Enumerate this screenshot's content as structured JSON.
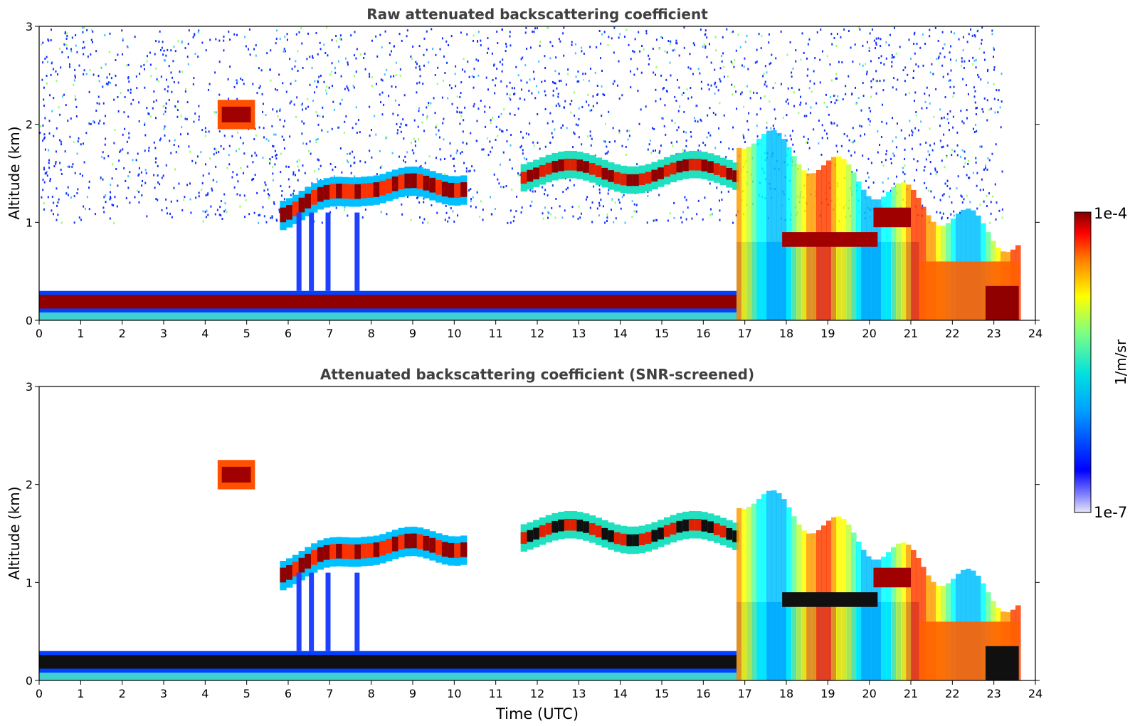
{
  "chart_data": [
    {
      "type": "heatmap",
      "title": "Raw attenuated backscattering coefficient",
      "xlabel": "",
      "ylabel": "Altitude (km)",
      "xlim": [
        0,
        24
      ],
      "ylim": [
        0,
        3
      ],
      "xticks": [
        "0",
        "1",
        "2",
        "3",
        "4",
        "5",
        "6",
        "7",
        "8",
        "9",
        "10",
        "11",
        "12",
        "13",
        "14",
        "15",
        "16",
        "17",
        "18",
        "19",
        "20",
        "21",
        "22",
        "23",
        "24"
      ],
      "yticks": [
        "0",
        "1",
        "2",
        "3"
      ],
      "grid": false,
      "features": [
        {
          "label": "boundary layer aerosol",
          "t": [
            0,
            16.8
          ],
          "z": [
            0.1,
            0.3
          ],
          "level": "high"
        },
        {
          "label": "elevated layer",
          "t": [
            4.3,
            5.2
          ],
          "z": [
            1.95,
            2.25
          ],
          "level": "high"
        },
        {
          "label": "cloud layer",
          "t": [
            5.8,
            10.3
          ],
          "z": [
            1.0,
            1.5
          ],
          "level": "high"
        },
        {
          "label": "cloud layer",
          "t": [
            11.6,
            16.8
          ],
          "z": [
            1.3,
            1.7
          ],
          "level": "high"
        },
        {
          "label": "precipitating cloud",
          "t": [
            16.8,
            23.6
          ],
          "z": [
            0,
            1.9
          ],
          "level": "high"
        },
        {
          "label": "noise",
          "t": [
            0,
            23.2
          ],
          "z": [
            1.0,
            3.0
          ],
          "level": "low"
        }
      ]
    },
    {
      "type": "heatmap",
      "title": "Attenuated backscattering coefficient (SNR-screened)",
      "xlabel": "Time (UTC)",
      "ylabel": "Altitude (km)",
      "xlim": [
        0,
        24
      ],
      "ylim": [
        0,
        3
      ],
      "xticks": [
        "0",
        "1",
        "2",
        "3",
        "4",
        "5",
        "6",
        "7",
        "8",
        "9",
        "10",
        "11",
        "12",
        "13",
        "14",
        "15",
        "16",
        "17",
        "18",
        "19",
        "20",
        "21",
        "22",
        "23",
        "24"
      ],
      "yticks": [
        "0",
        "1",
        "2",
        "3"
      ],
      "grid": false,
      "features": [
        {
          "label": "boundary layer aerosol",
          "t": [
            0,
            16.8
          ],
          "z": [
            0.1,
            0.3
          ],
          "level": "saturated"
        },
        {
          "label": "elevated layer",
          "t": [
            4.3,
            5.2
          ],
          "z": [
            1.95,
            2.25
          ],
          "level": "high"
        },
        {
          "label": "cloud layer",
          "t": [
            5.8,
            10.3
          ],
          "z": [
            1.0,
            1.5
          ],
          "level": "high"
        },
        {
          "label": "cloud layer",
          "t": [
            11.6,
            16.8
          ],
          "z": [
            1.3,
            1.7
          ],
          "level": "high"
        },
        {
          "label": "precipitating cloud",
          "t": [
            16.8,
            23.6
          ],
          "z": [
            0,
            1.9
          ],
          "level": "high"
        }
      ]
    }
  ],
  "colorbar": {
    "max_label": "1e-4",
    "min_label": "1e-7",
    "unit_label": "1/m/sr",
    "colormap": "jet"
  }
}
